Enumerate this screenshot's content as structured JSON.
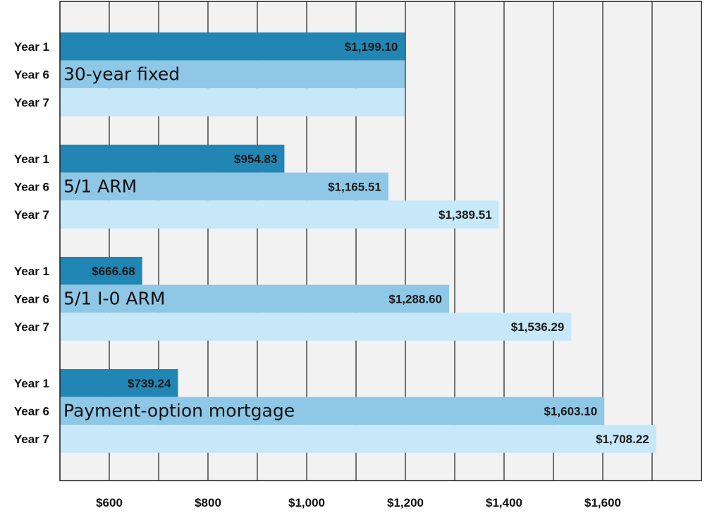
{
  "chart_data": {
    "type": "bar",
    "orientation": "horizontal",
    "title": "",
    "xlabel": "",
    "ylabel": "",
    "xlim": [
      500,
      1700
    ],
    "x_ticks": [
      "$600",
      "$800",
      "$1,000",
      "$1,200",
      "$1,400",
      "$1,600"
    ],
    "grid": true,
    "legend": "none",
    "groups": [
      {
        "name": "30-year fixed",
        "bars": [
          {
            "label": "Year 1",
            "value": 1199.1,
            "value_label": "$1,199.10",
            "color": "#2286b4"
          },
          {
            "label": "Year 6",
            "value": 1199.1,
            "value_label": "",
            "color": "#8ec8e6"
          },
          {
            "label": "Year 7",
            "value": 1199.1,
            "value_label": "",
            "color": "#c6e8f9"
          }
        ]
      },
      {
        "name": "5/1 ARM",
        "bars": [
          {
            "label": "Year 1",
            "value": 954.83,
            "value_label": "$954.83",
            "color": "#2286b4"
          },
          {
            "label": "Year 6",
            "value": 1165.51,
            "value_label": "$1,165.51",
            "color": "#8ec8e6"
          },
          {
            "label": "Year 7",
            "value": 1389.51,
            "value_label": "$1,389.51",
            "color": "#c6e8f9"
          }
        ]
      },
      {
        "name": "5/1 I-0 ARM",
        "bars": [
          {
            "label": "Year 1",
            "value": 666.68,
            "value_label": "$666.68",
            "color": "#2286b4"
          },
          {
            "label": "Year 6",
            "value": 1288.6,
            "value_label": "$1,288.60",
            "color": "#8ec8e6"
          },
          {
            "label": "Year 7",
            "value": 1536.29,
            "value_label": "$1,536.29",
            "color": "#c6e8f9"
          }
        ]
      },
      {
        "name": "Payment-option mortgage",
        "bars": [
          {
            "label": "Year 1",
            "value": 739.24,
            "value_label": "$739.24",
            "color": "#2286b4"
          },
          {
            "label": "Year 6",
            "value": 1603.1,
            "value_label": "$1,603.10",
            "color": "#8ec8e6"
          },
          {
            "label": "Year 7",
            "value": 1708.22,
            "value_label": "$1,708.22",
            "color": "#c6e8f9"
          }
        ]
      }
    ],
    "colors": {
      "plot_background": "#f2f2f2",
      "gridline": "#1a1a1a"
    }
  }
}
